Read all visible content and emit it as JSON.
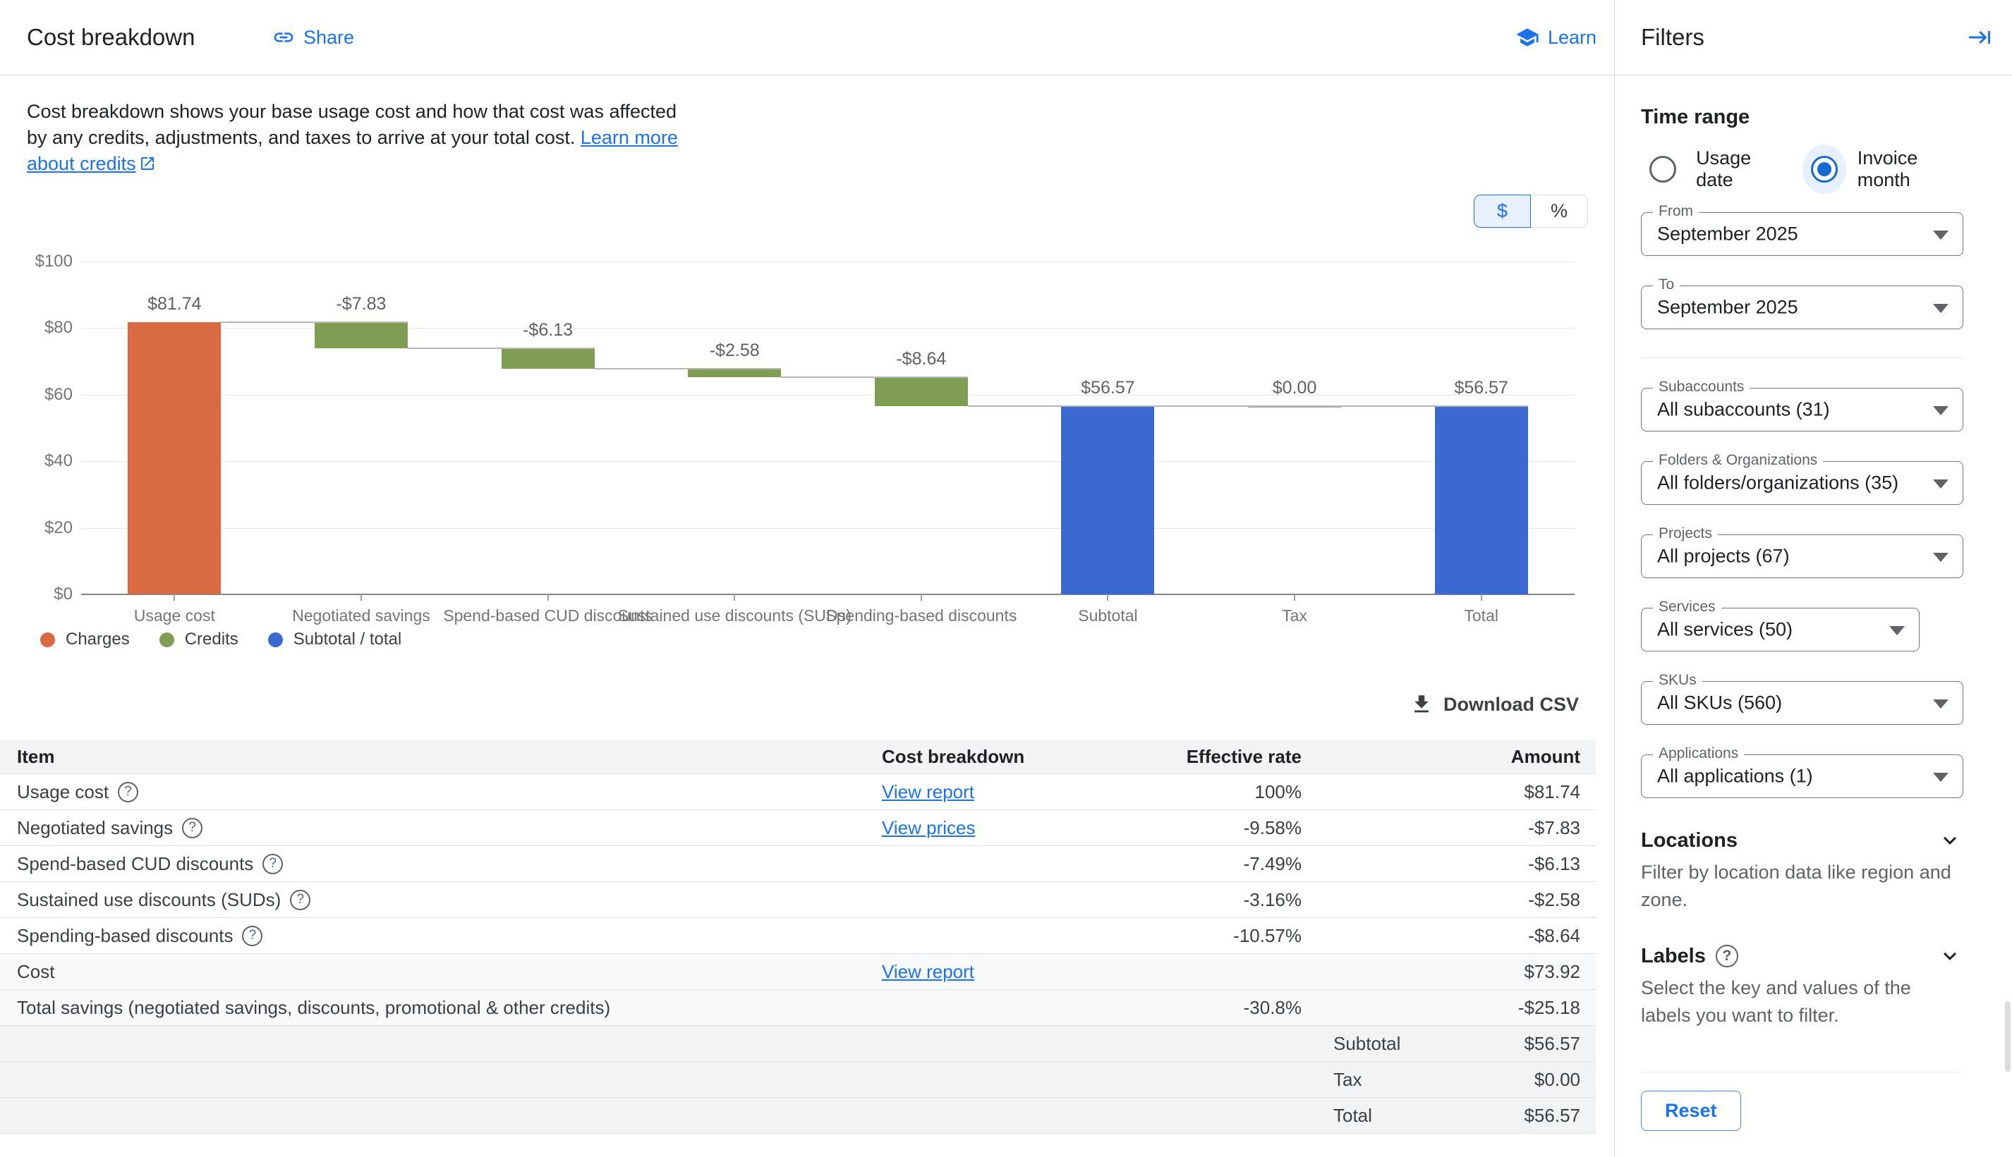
{
  "header": {
    "title": "Cost breakdown",
    "share_label": "Share",
    "learn_label": "Learn"
  },
  "description": {
    "text": "Cost breakdown shows your base usage cost and how that cost was affected by any credits, adjustments, and taxes to arrive at your total cost. ",
    "link_label": "Learn more about credits"
  },
  "toggle": {
    "dollar_label": "$",
    "percent_label": "%",
    "selected": "dollar"
  },
  "chart_data": {
    "type": "waterfall-bar",
    "ylim": [
      0,
      100
    ],
    "yticks": [
      0,
      20,
      40,
      60,
      80,
      100
    ],
    "ytick_labels": [
      "$0",
      "$20",
      "$40",
      "$60",
      "$80",
      "$100"
    ],
    "grid": true,
    "legend_position": "bottom-left",
    "colors": {
      "charge": "#D96B43",
      "credit": "#7F9E53",
      "total": "#3B68D1"
    },
    "steps": [
      {
        "label": "Usage cost",
        "display": "$81.74",
        "from": 0,
        "to": 81.74,
        "kind": "charge"
      },
      {
        "label": "Negotiated savings",
        "display": "-$7.83",
        "from": 81.74,
        "to": 73.91,
        "kind": "credit"
      },
      {
        "label": "Spend-based CUD discounts",
        "display": "-$6.13",
        "from": 73.91,
        "to": 67.78,
        "kind": "credit"
      },
      {
        "label": "Sustained use discounts (SUDs)",
        "display": "-$2.58",
        "from": 67.78,
        "to": 65.2,
        "kind": "credit"
      },
      {
        "label": "Spending-based discounts",
        "display": "-$8.64",
        "from": 65.2,
        "to": 56.56,
        "kind": "credit"
      },
      {
        "label": "Subtotal",
        "display": "$56.57",
        "from": 0,
        "to": 56.57,
        "kind": "total"
      },
      {
        "label": "Tax",
        "display": "$0.00",
        "from": 56.57,
        "to": 56.57,
        "kind": "total"
      },
      {
        "label": "Total",
        "display": "$56.57",
        "from": 0,
        "to": 56.57,
        "kind": "total"
      }
    ],
    "legend": [
      {
        "label": "Charges",
        "kind": "charge"
      },
      {
        "label": "Credits",
        "kind": "credit"
      },
      {
        "label": "Subtotal / total",
        "kind": "total"
      }
    ]
  },
  "download_label": "Download CSV",
  "table": {
    "columns": [
      "Item",
      "Cost breakdown",
      "Effective rate",
      "Amount"
    ],
    "rows": [
      {
        "item": "Usage cost",
        "help": true,
        "link": "View report",
        "rate": "100%",
        "sublabel": "",
        "amount": "$81.74",
        "bg": "white"
      },
      {
        "item": "Negotiated savings",
        "help": true,
        "link": "View prices",
        "rate": "-9.58%",
        "sublabel": "",
        "amount": "-$7.83",
        "bg": "white"
      },
      {
        "item": "Spend-based CUD discounts",
        "help": true,
        "link": "",
        "rate": "-7.49%",
        "sublabel": "",
        "amount": "-$6.13",
        "bg": "white"
      },
      {
        "item": "Sustained use discounts (SUDs)",
        "help": true,
        "link": "",
        "rate": "-3.16%",
        "sublabel": "",
        "amount": "-$2.58",
        "bg": "white"
      },
      {
        "item": "Spending-based discounts",
        "help": true,
        "link": "",
        "rate": "-10.57%",
        "sublabel": "",
        "amount": "-$8.64",
        "bg": "white"
      },
      {
        "item": "Cost",
        "help": false,
        "link": "View report",
        "rate": "",
        "sublabel": "",
        "amount": "$73.92",
        "bg": "light"
      },
      {
        "item": "Total savings (negotiated savings, discounts, promotional & other credits)",
        "help": false,
        "link": "",
        "rate": "-30.8%",
        "sublabel": "",
        "amount": "-$25.18",
        "bg": "light"
      },
      {
        "item": "",
        "help": false,
        "link": "",
        "rate": "",
        "sublabel": "Subtotal",
        "amount": "$56.57",
        "bg": "gray"
      },
      {
        "item": "",
        "help": false,
        "link": "",
        "rate": "",
        "sublabel": "Tax",
        "amount": "$0.00",
        "bg": "gray"
      },
      {
        "item": "",
        "help": false,
        "link": "",
        "rate": "",
        "sublabel": "Total",
        "amount": "$56.57",
        "bg": "gray"
      }
    ]
  },
  "filters": {
    "title": "Filters",
    "time_range": {
      "heading": "Time range",
      "options": [
        {
          "label": "Usage date",
          "selected": false
        },
        {
          "label": "Invoice month",
          "selected": true
        }
      ]
    },
    "time_selects": [
      {
        "label": "From",
        "value": "September 2025"
      },
      {
        "label": "To",
        "value": "September 2025"
      }
    ],
    "scope_selects": [
      {
        "label": "Subaccounts",
        "value": "All subaccounts (31)",
        "help": false
      },
      {
        "label": "Folders & Organizations",
        "value": "All folders/organizations (35)",
        "help": false
      },
      {
        "label": "Projects",
        "value": "All projects (67)",
        "help": false
      },
      {
        "label": "Services",
        "value": "All services (50)",
        "help": true
      },
      {
        "label": "SKUs",
        "value": "All SKUs (560)",
        "help": false
      },
      {
        "label": "Applications",
        "value": "All applications (1)",
        "help": false
      }
    ],
    "sections": [
      {
        "heading": "Locations",
        "help": false,
        "description": "Filter by location data like region and zone."
      },
      {
        "heading": "Labels",
        "help": true,
        "description": "Select the key and values of the labels you want to filter."
      }
    ],
    "reset_label": "Reset"
  }
}
